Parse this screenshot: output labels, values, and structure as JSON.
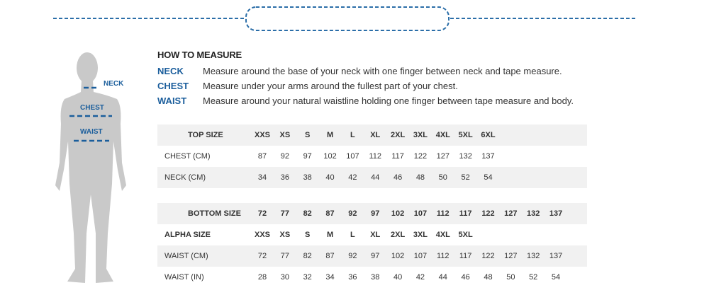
{
  "colors": {
    "accent": "#1b5e9c",
    "row_shade": "#f1f1f1",
    "silhouette": "#c9c9c9"
  },
  "figure": {
    "labels": {
      "neck": "NECK",
      "chest": "CHEST",
      "waist": "WAIST"
    }
  },
  "how_to_measure": {
    "title": "HOW TO MEASURE",
    "items": [
      {
        "label": "NECK",
        "text": "Measure around the base of your neck with one finger between neck and tape measure."
      },
      {
        "label": "CHEST",
        "text": "Measure under your arms around the fullest part of your chest."
      },
      {
        "label": "WAIST",
        "text": "Measure around your natural waistline holding one finger between tape measure and body."
      }
    ]
  },
  "top_table": {
    "rows": [
      {
        "label": "TOP SIZE",
        "header": true,
        "cells": [
          "XXS",
          "XS",
          "S",
          "M",
          "L",
          "XL",
          "2XL",
          "3XL",
          "4XL",
          "5XL",
          "6XL"
        ]
      },
      {
        "label": "CHEST (CM)",
        "cells": [
          "87",
          "92",
          "97",
          "102",
          "107",
          "112",
          "117",
          "122",
          "127",
          "132",
          "137"
        ]
      },
      {
        "label": "NECK (CM)",
        "cells": [
          "34",
          "36",
          "38",
          "40",
          "42",
          "44",
          "46",
          "48",
          "50",
          "52",
          "54"
        ]
      }
    ]
  },
  "bottom_table": {
    "rows": [
      {
        "label": "BOTTOM  SIZE",
        "header": true,
        "cells": [
          "72",
          "77",
          "82",
          "87",
          "92",
          "97",
          "102",
          "107",
          "112",
          "117",
          "122",
          "127",
          "132",
          "137"
        ]
      },
      {
        "label": "ALPHA SIZE",
        "bold": true,
        "cells": [
          "XXS",
          "XS",
          "S",
          "M",
          "L",
          "XL",
          "2XL",
          "3XL",
          "4XL",
          "5XL"
        ]
      },
      {
        "label": "WAIST (CM)",
        "cells": [
          "72",
          "77",
          "82",
          "87",
          "92",
          "97",
          "102",
          "107",
          "112",
          "117",
          "122",
          "127",
          "132",
          "137"
        ]
      },
      {
        "label": "WAIST (IN)",
        "cells": [
          "28",
          "30",
          "32",
          "34",
          "36",
          "38",
          "40",
          "42",
          "44",
          "46",
          "48",
          "50",
          "52",
          "54"
        ]
      }
    ]
  }
}
